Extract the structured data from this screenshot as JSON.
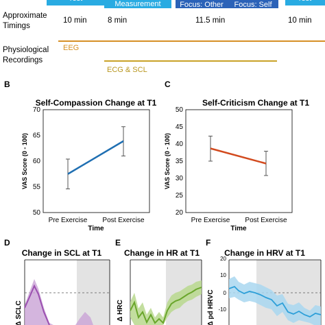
{
  "timeline": {
    "boxes": [
      {
        "label": "rest",
        "color": "#29abe2"
      },
      {
        "label": "Measurement",
        "color": "#29abe2"
      },
      {
        "label": "Focus: Other",
        "color": "#2b62b8"
      },
      {
        "label": "Focus: Self",
        "color": "#2b62b8"
      },
      {
        "label": "rest",
        "color": "#29abe2"
      }
    ],
    "timings_label": "Approximate Timings",
    "timings": [
      "10 min",
      "8 min",
      "11.5 min",
      "10 min"
    ],
    "phys_label": "Physiological Recordings",
    "eeg_label": "EEG",
    "ecg_label": "ECG & SCL",
    "line_color": "#d68f24"
  },
  "chart_data": [
    {
      "panel": "B",
      "type": "line",
      "title": "Self-Compassion Change at T1",
      "xlabel": "Time",
      "ylabel": "VAS Score (0 - 100)",
      "categories": [
        "Pre Exercise",
        "Post Exercise"
      ],
      "values": [
        57.5,
        63.9
      ],
      "err_low": [
        54.6,
        61.0
      ],
      "err_high": [
        60.4,
        66.7
      ],
      "ylim": [
        50,
        70
      ],
      "yticks": [
        "50",
        "55",
        "60",
        "65",
        "70"
      ],
      "color": "#1f6fb2"
    },
    {
      "panel": "C",
      "type": "line",
      "title": "Self-Criticism Change at T1",
      "xlabel": "Time",
      "ylabel": "VAS Score (0 - 100)",
      "categories": [
        "Pre Exercise",
        "Post Exercise"
      ],
      "values": [
        38.7,
        34.3
      ],
      "err_low": [
        35.0,
        30.8
      ],
      "err_high": [
        42.3,
        37.9
      ],
      "ylim": [
        20,
        50
      ],
      "yticks": [
        "20",
        "25",
        "30",
        "35",
        "40",
        "45",
        "50"
      ],
      "color": "#d24a1e"
    },
    {
      "panel": "D",
      "type": "area",
      "title": "Change in SCL at T1",
      "ylabel": "Δ SCLC",
      "color": "#9b4fb0",
      "fill": "#c9a3d6"
    },
    {
      "panel": "E",
      "type": "area",
      "title": "Change in HR at T1",
      "ylabel": "Δ HRC",
      "color": "#6aa62c",
      "fill": "#b8d88e"
    },
    {
      "panel": "F",
      "type": "area",
      "title": "Change in HRV at T1",
      "ylabel": "Δ pd HRVC",
      "yticks": [
        "20",
        "10",
        "0",
        "-10"
      ],
      "color": "#2d9fd8",
      "fill": "#a9d7f0"
    }
  ]
}
